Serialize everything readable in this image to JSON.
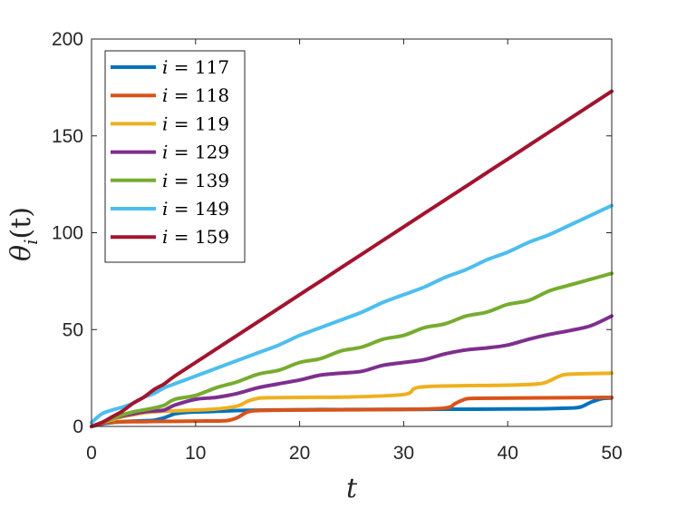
{
  "chart_data": {
    "type": "line",
    "xlabel": "t",
    "ylabel": "θ_i(t)",
    "ylabel_main": "θ",
    "ylabel_sub": "i",
    "ylabel_tail": "(t)",
    "xlim": [
      0,
      50
    ],
    "ylim": [
      0,
      200
    ],
    "xticks": [
      0,
      10,
      20,
      30,
      40,
      50
    ],
    "yticks": [
      0,
      50,
      100,
      150,
      200
    ],
    "xtick_labels": [
      "0",
      "10",
      "20",
      "30",
      "40",
      "50"
    ],
    "ytick_labels": [
      "0",
      "50",
      "100",
      "150",
      "200"
    ],
    "grid": false,
    "legend_position": "top-left",
    "series": [
      {
        "name": "i = 117",
        "var": "i",
        "eq": " = ",
        "num": "117",
        "color": "#0072BD",
        "x": [
          0,
          1,
          2,
          3,
          4,
          5,
          6,
          7,
          8,
          9,
          10,
          11,
          12,
          13,
          14,
          15,
          16,
          18,
          20,
          22,
          25,
          28,
          31,
          34,
          37,
          40,
          43,
          46,
          47,
          48,
          49,
          50
        ],
        "y": [
          0,
          1.2,
          2,
          2.5,
          2.7,
          2.9,
          3.2,
          4.5,
          6.5,
          7.2,
          7.5,
          7.6,
          7.8,
          8,
          8.2,
          8.3,
          8.4,
          8.5,
          8.6,
          8.7,
          8.7,
          8.8,
          8.8,
          8.9,
          8.9,
          9,
          9.1,
          9.5,
          10,
          12.5,
          14.3,
          14.7
        ]
      },
      {
        "name": "i = 118",
        "var": "i",
        "eq": " = ",
        "num": "118",
        "color": "#D95319",
        "x": [
          0,
          1,
          2,
          3,
          5,
          7,
          9,
          11,
          13,
          14,
          15,
          16,
          18,
          20,
          25,
          30,
          34,
          35,
          36,
          37,
          40,
          45,
          50
        ],
        "y": [
          0,
          1.5,
          2.2,
          2.4,
          2.5,
          2.6,
          2.7,
          2.8,
          3,
          4.5,
          7.5,
          8.2,
          8.4,
          8.5,
          8.6,
          8.8,
          9.5,
          12,
          14.2,
          14.5,
          14.6,
          14.8,
          15
        ]
      },
      {
        "name": "i = 119",
        "var": "i",
        "eq": " = ",
        "num": "119",
        "color": "#EDB120",
        "x": [
          0,
          1,
          2,
          3,
          4,
          5,
          6,
          7,
          8,
          10,
          12,
          14,
          15,
          16,
          17,
          20,
          25,
          30,
          31,
          32,
          35,
          40,
          43,
          44,
          45,
          46,
          50
        ],
        "y": [
          0,
          2,
          3.5,
          5,
          6,
          7,
          7.5,
          7.8,
          8,
          8.5,
          9,
          10.5,
          13,
          14.5,
          14.8,
          15,
          15.2,
          16.5,
          19.5,
          20.5,
          21,
          21.3,
          22,
          23.5,
          26,
          27,
          27.5
        ]
      },
      {
        "name": "i = 129",
        "var": "i",
        "eq": " = ",
        "num": "129",
        "color": "#7E2F8E",
        "x": [
          0,
          1,
          2,
          3,
          4,
          5,
          6,
          7,
          8,
          10,
          12,
          14,
          16,
          18,
          20,
          22,
          24,
          26,
          28,
          30,
          32,
          34,
          36,
          38,
          40,
          42,
          44,
          46,
          48,
          50
        ],
        "y": [
          0,
          2,
          4,
          5.5,
          6.5,
          7.5,
          8,
          8.5,
          11,
          14,
          15,
          17,
          20,
          22,
          24,
          26.5,
          27.5,
          28.5,
          31.5,
          33,
          34.5,
          37.5,
          39.5,
          40.5,
          42,
          45,
          47.5,
          49.5,
          52,
          57
        ]
      },
      {
        "name": "i = 139",
        "var": "i",
        "eq": " = ",
        "num": "139",
        "color": "#77AC30",
        "x": [
          0,
          1,
          2,
          3,
          4,
          5,
          6,
          7,
          8,
          10,
          12,
          14,
          16,
          18,
          20,
          22,
          24,
          26,
          28,
          30,
          32,
          34,
          36,
          38,
          40,
          42,
          44,
          46,
          48,
          50
        ],
        "y": [
          0,
          2,
          4,
          6,
          7.5,
          8.5,
          9.5,
          11,
          14,
          16,
          20,
          23,
          27,
          29,
          33,
          35,
          39,
          41,
          45,
          47,
          51,
          53,
          57,
          59,
          63,
          65,
          70,
          73,
          76,
          79
        ]
      },
      {
        "name": "i = 149",
        "var": "i",
        "eq": " = ",
        "num": "149",
        "color": "#4DBEEE",
        "x": [
          0,
          1,
          2,
          3,
          4,
          5,
          6,
          7,
          8,
          10,
          12,
          14,
          16,
          18,
          20,
          22,
          24,
          26,
          28,
          30,
          32,
          34,
          36,
          38,
          40,
          42,
          44,
          46,
          48,
          50
        ],
        "y": [
          2,
          6.5,
          8.5,
          10,
          12,
          15,
          17,
          20,
          22,
          26,
          30,
          34,
          38,
          42,
          47,
          51,
          55,
          59,
          64,
          68,
          72,
          77,
          81,
          86,
          90,
          95,
          99,
          104,
          109,
          114
        ]
      },
      {
        "name": "i = 159",
        "var": "i",
        "eq": " = ",
        "num": "159",
        "color": "#A2142F",
        "x": [
          0,
          1,
          2,
          3,
          4,
          5,
          6,
          7,
          8,
          10,
          12,
          14,
          16,
          18,
          20,
          22,
          24,
          26,
          28,
          30,
          32,
          34,
          36,
          38,
          40,
          42,
          44,
          46,
          48,
          50
        ],
        "y": [
          0,
          2,
          5,
          8,
          12,
          15,
          19,
          22,
          26,
          33,
          40,
          47,
          54,
          61,
          68,
          75,
          82,
          89,
          96,
          103,
          110,
          117,
          124,
          131,
          138,
          145,
          152,
          159,
          166,
          173
        ]
      }
    ]
  }
}
